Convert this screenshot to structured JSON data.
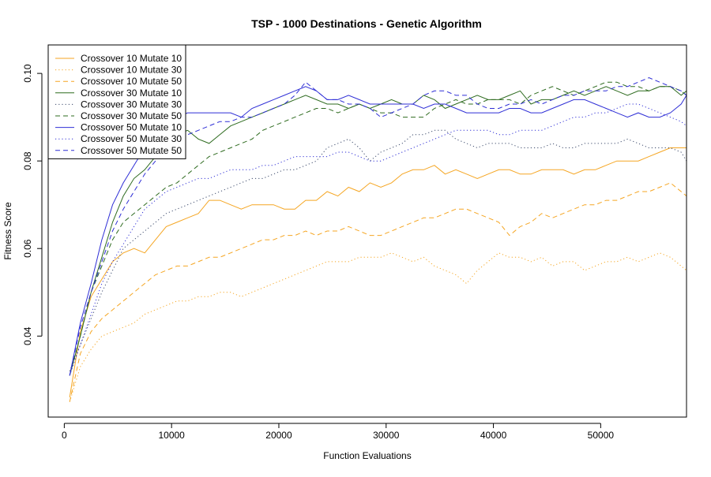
{
  "chart_data": {
    "type": "line",
    "title": "TSP - 1000 Destinations - Genetic Algorithm",
    "xlabel": "Function Evaluations",
    "ylabel": "Fitness Score",
    "xlim": [
      -1500,
      58000
    ],
    "ylim": [
      0.0215,
      0.1065
    ],
    "x_ticks": [
      0,
      10000,
      20000,
      30000,
      40000,
      50000
    ],
    "x_tick_labels": [
      "0",
      "10000",
      "20000",
      "30000",
      "40000",
      "50000"
    ],
    "y_ticks": [
      0.04,
      0.06,
      0.08,
      0.1
    ],
    "y_tick_labels": [
      "0.04",
      "0.06",
      "0.08",
      "0.10"
    ],
    "grid": false,
    "legend_position": "top-left",
    "x": [
      500,
      1500,
      2500,
      3500,
      4500,
      5500,
      6500,
      7500,
      8500,
      9500,
      10500,
      11500,
      12500,
      13500,
      14500,
      15500,
      16500,
      17500,
      18500,
      19500,
      20500,
      21500,
      22500,
      23500,
      24500,
      25500,
      26500,
      27500,
      28500,
      29500,
      30500,
      31500,
      32500,
      33500,
      34500,
      35500,
      36500,
      37500,
      38500,
      39500,
      40500,
      41500,
      42500,
      43500,
      44500,
      45500,
      46500,
      47500,
      48500,
      49500,
      50500,
      51500,
      52500,
      53500,
      54500,
      55500,
      56500,
      57500,
      58000
    ],
    "series": [
      {
        "name": "Crossover 10 Mutate 10",
        "color": "#f5a623",
        "dash": "solid",
        "values": [
          0.026,
          0.041,
          0.049,
          0.053,
          0.057,
          0.059,
          0.06,
          0.059,
          0.062,
          0.065,
          0.066,
          0.067,
          0.068,
          0.071,
          0.071,
          0.07,
          0.069,
          0.07,
          0.07,
          0.07,
          0.069,
          0.069,
          0.071,
          0.071,
          0.073,
          0.072,
          0.074,
          0.073,
          0.075,
          0.074,
          0.075,
          0.077,
          0.078,
          0.078,
          0.079,
          0.077,
          0.078,
          0.077,
          0.076,
          0.077,
          0.078,
          0.078,
          0.077,
          0.077,
          0.078,
          0.078,
          0.078,
          0.077,
          0.078,
          0.078,
          0.079,
          0.08,
          0.08,
          0.08,
          0.081,
          0.082,
          0.083,
          0.083,
          0.083
        ]
      },
      {
        "name": "Crossover 10 Mutate 30",
        "color": "#f5a623",
        "dash": "dotted",
        "values": [
          0.025,
          0.033,
          0.037,
          0.04,
          0.041,
          0.042,
          0.043,
          0.045,
          0.046,
          0.047,
          0.048,
          0.048,
          0.049,
          0.049,
          0.05,
          0.05,
          0.049,
          0.05,
          0.051,
          0.052,
          0.053,
          0.054,
          0.055,
          0.056,
          0.057,
          0.057,
          0.057,
          0.058,
          0.058,
          0.058,
          0.059,
          0.058,
          0.057,
          0.058,
          0.056,
          0.055,
          0.054,
          0.052,
          0.055,
          0.057,
          0.059,
          0.058,
          0.058,
          0.057,
          0.058,
          0.056,
          0.057,
          0.057,
          0.055,
          0.056,
          0.057,
          0.057,
          0.058,
          0.057,
          0.058,
          0.059,
          0.058,
          0.056,
          0.055
        ]
      },
      {
        "name": "Crossover 10 Mutate 50",
        "color": "#f5a623",
        "dash": "dashed",
        "values": [
          0.025,
          0.036,
          0.041,
          0.044,
          0.046,
          0.048,
          0.05,
          0.052,
          0.054,
          0.055,
          0.056,
          0.056,
          0.057,
          0.058,
          0.058,
          0.059,
          0.06,
          0.061,
          0.062,
          0.062,
          0.063,
          0.063,
          0.064,
          0.063,
          0.064,
          0.064,
          0.065,
          0.064,
          0.063,
          0.063,
          0.064,
          0.065,
          0.066,
          0.067,
          0.067,
          0.068,
          0.069,
          0.069,
          0.068,
          0.067,
          0.066,
          0.063,
          0.065,
          0.066,
          0.068,
          0.067,
          0.068,
          0.069,
          0.07,
          0.07,
          0.071,
          0.071,
          0.072,
          0.073,
          0.073,
          0.074,
          0.075,
          0.073,
          0.072
        ]
      },
      {
        "name": "Crossover 30 Mutate 10",
        "color": "#2e6b1f",
        "dash": "solid",
        "values": [
          0.031,
          0.04,
          0.05,
          0.058,
          0.066,
          0.072,
          0.076,
          0.078,
          0.081,
          0.084,
          0.086,
          0.087,
          0.085,
          0.084,
          0.086,
          0.088,
          0.089,
          0.09,
          0.091,
          0.092,
          0.093,
          0.094,
          0.095,
          0.094,
          0.093,
          0.093,
          0.092,
          0.093,
          0.092,
          0.093,
          0.094,
          0.093,
          0.093,
          0.095,
          0.094,
          0.092,
          0.093,
          0.094,
          0.095,
          0.094,
          0.094,
          0.095,
          0.096,
          0.093,
          0.094,
          0.094,
          0.095,
          0.096,
          0.095,
          0.096,
          0.097,
          0.096,
          0.095,
          0.096,
          0.096,
          0.097,
          0.097,
          0.095,
          0.096
        ]
      },
      {
        "name": "Crossover 30 Mutate 30",
        "color": "#3c4a6b",
        "dash": "dotted",
        "values": [
          0.032,
          0.038,
          0.044,
          0.05,
          0.055,
          0.06,
          0.062,
          0.064,
          0.066,
          0.068,
          0.069,
          0.07,
          0.071,
          0.072,
          0.073,
          0.074,
          0.075,
          0.076,
          0.076,
          0.077,
          0.078,
          0.078,
          0.079,
          0.08,
          0.083,
          0.084,
          0.085,
          0.083,
          0.08,
          0.082,
          0.083,
          0.084,
          0.086,
          0.086,
          0.087,
          0.087,
          0.085,
          0.084,
          0.083,
          0.084,
          0.084,
          0.084,
          0.083,
          0.083,
          0.083,
          0.084,
          0.083,
          0.083,
          0.084,
          0.084,
          0.084,
          0.084,
          0.085,
          0.084,
          0.083,
          0.083,
          0.083,
          0.082,
          0.08
        ]
      },
      {
        "name": "Crossover 30 Mutate 50",
        "color": "#2e6b1f",
        "dash": "dashed",
        "values": [
          0.031,
          0.04,
          0.05,
          0.056,
          0.062,
          0.066,
          0.068,
          0.07,
          0.072,
          0.074,
          0.075,
          0.077,
          0.079,
          0.081,
          0.082,
          0.083,
          0.084,
          0.085,
          0.087,
          0.088,
          0.089,
          0.09,
          0.091,
          0.092,
          0.092,
          0.091,
          0.092,
          0.093,
          0.092,
          0.091,
          0.091,
          0.09,
          0.09,
          0.09,
          0.092,
          0.093,
          0.094,
          0.093,
          0.093,
          0.094,
          0.094,
          0.094,
          0.093,
          0.095,
          0.096,
          0.097,
          0.096,
          0.095,
          0.096,
          0.097,
          0.098,
          0.098,
          0.097,
          0.097,
          0.096,
          0.097,
          0.097,
          0.096,
          0.095
        ]
      },
      {
        "name": "Crossover 50 Mutate 10",
        "color": "#2f2fd6",
        "dash": "solid",
        "values": [
          0.031,
          0.043,
          0.052,
          0.062,
          0.07,
          0.075,
          0.079,
          0.083,
          0.086,
          0.088,
          0.09,
          0.091,
          0.091,
          0.091,
          0.091,
          0.091,
          0.09,
          0.092,
          0.093,
          0.094,
          0.095,
          0.096,
          0.097,
          0.096,
          0.094,
          0.094,
          0.095,
          0.094,
          0.093,
          0.093,
          0.093,
          0.093,
          0.093,
          0.092,
          0.093,
          0.093,
          0.092,
          0.091,
          0.091,
          0.091,
          0.091,
          0.092,
          0.092,
          0.091,
          0.091,
          0.092,
          0.093,
          0.094,
          0.094,
          0.093,
          0.092,
          0.091,
          0.09,
          0.091,
          0.09,
          0.09,
          0.091,
          0.093,
          0.095
        ]
      },
      {
        "name": "Crossover 50 Mutate 30",
        "color": "#2f2fd6",
        "dash": "dotted",
        "values": [
          0.031,
          0.038,
          0.045,
          0.052,
          0.057,
          0.061,
          0.065,
          0.069,
          0.071,
          0.073,
          0.074,
          0.075,
          0.076,
          0.076,
          0.077,
          0.078,
          0.078,
          0.078,
          0.079,
          0.079,
          0.08,
          0.081,
          0.081,
          0.081,
          0.081,
          0.082,
          0.082,
          0.081,
          0.08,
          0.08,
          0.081,
          0.082,
          0.083,
          0.084,
          0.085,
          0.086,
          0.087,
          0.087,
          0.087,
          0.087,
          0.086,
          0.086,
          0.087,
          0.087,
          0.087,
          0.088,
          0.089,
          0.09,
          0.09,
          0.091,
          0.091,
          0.092,
          0.093,
          0.093,
          0.092,
          0.091,
          0.09,
          0.089,
          0.088
        ]
      },
      {
        "name": "Crossover 50 Mutate 50",
        "color": "#2f2fd6",
        "dash": "dashed",
        "values": [
          0.031,
          0.042,
          0.05,
          0.057,
          0.064,
          0.069,
          0.073,
          0.077,
          0.08,
          0.083,
          0.085,
          0.086,
          0.087,
          0.088,
          0.089,
          0.089,
          0.09,
          0.09,
          0.091,
          0.092,
          0.093,
          0.095,
          0.098,
          0.096,
          0.094,
          0.094,
          0.093,
          0.093,
          0.092,
          0.09,
          0.091,
          0.092,
          0.093,
          0.095,
          0.096,
          0.096,
          0.095,
          0.095,
          0.093,
          0.092,
          0.092,
          0.093,
          0.093,
          0.094,
          0.093,
          0.094,
          0.095,
          0.095,
          0.096,
          0.096,
          0.096,
          0.097,
          0.097,
          0.098,
          0.099,
          0.098,
          0.097,
          0.096,
          0.095
        ]
      }
    ]
  }
}
